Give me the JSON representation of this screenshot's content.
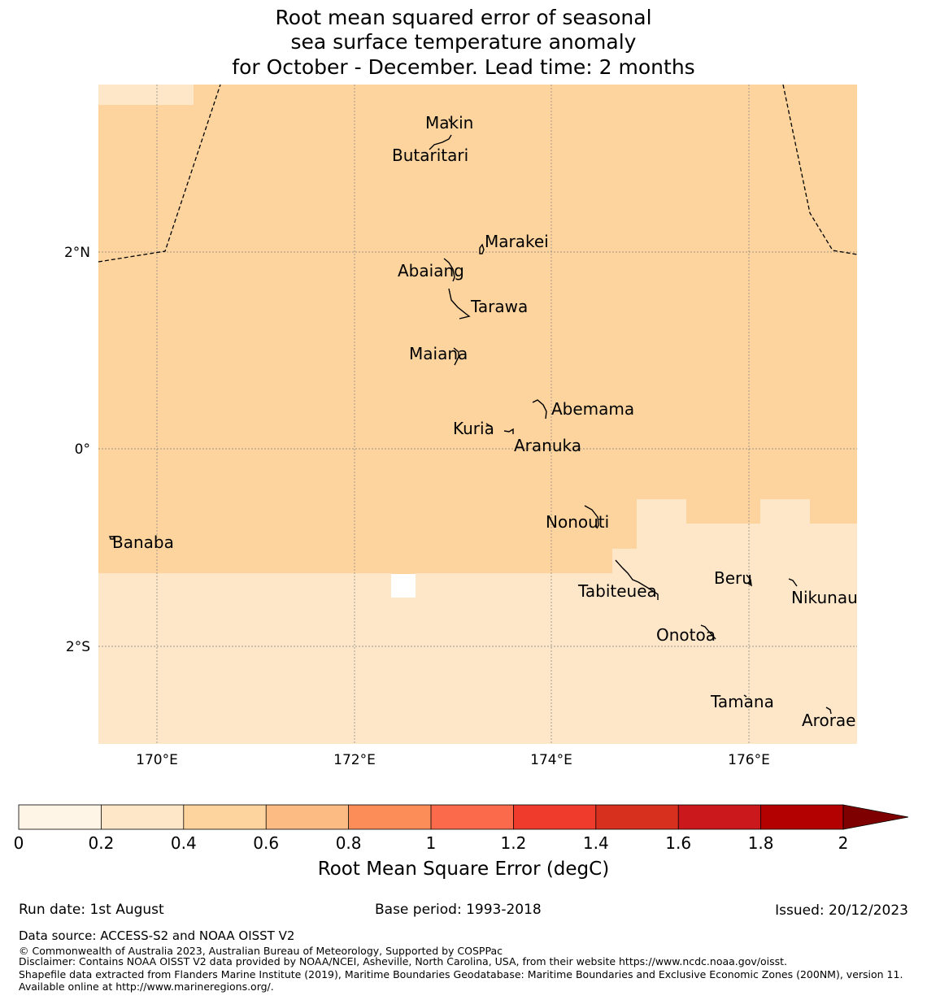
{
  "title": {
    "line1": "Root mean squared error of seasonal",
    "line2": "sea surface temperature anomaly",
    "line3": "for October - December. Lead time: 2 months"
  },
  "colors": {
    "rmse_0_0_2": "#fff5e6",
    "rmse_0_2_0_4": "#fee6c8",
    "rmse_0_4_0_6": "#fdd49e",
    "boundary": "#000000",
    "grid": "#7f7f7f"
  },
  "map": {
    "lon_range": [
      169.4,
      177.1
    ],
    "lat_range": [
      -2.9,
      3.6
    ],
    "lon_ticks": [
      {
        "value": 170,
        "label": "170°E"
      },
      {
        "value": 172,
        "label": "172°E"
      },
      {
        "value": 174,
        "label": "174°E"
      },
      {
        "value": 176,
        "label": "176°E"
      }
    ],
    "lat_ticks": [
      {
        "value": 2,
        "label": "2°N"
      },
      {
        "value": 0,
        "label": "0°"
      },
      {
        "value": -2,
        "label": "2°S"
      }
    ],
    "islands": [
      {
        "name": "Makin",
        "lon": 173.0,
        "lat": 3.25
      },
      {
        "name": "Butaritari",
        "lon": 172.8,
        "lat": 3.1
      },
      {
        "name": "Marakei",
        "lon": 173.3,
        "lat": 2.0
      },
      {
        "name": "Abaiang",
        "lon": 173.0,
        "lat": 1.85
      },
      {
        "name": "Tarawa",
        "lon": 173.0,
        "lat": 1.45
      },
      {
        "name": "Maiana",
        "lon": 173.0,
        "lat": 0.95
      },
      {
        "name": "Abemama",
        "lon": 173.85,
        "lat": 0.4
      },
      {
        "name": "Kuria",
        "lon": 173.4,
        "lat": 0.22
      },
      {
        "name": "Aranuka",
        "lon": 173.6,
        "lat": 0.18
      },
      {
        "name": "Banaba",
        "lon": 169.55,
        "lat": -0.87
      },
      {
        "name": "Nonouti",
        "lon": 174.4,
        "lat": -0.67
      },
      {
        "name": "Beru",
        "lon": 176.0,
        "lat": -1.33
      },
      {
        "name": "Tabiteuea",
        "lon": 174.9,
        "lat": -1.35
      },
      {
        "name": "Nikunau",
        "lon": 176.45,
        "lat": -1.37
      },
      {
        "name": "Onotoa",
        "lon": 175.55,
        "lat": -1.8
      },
      {
        "name": "Tamana",
        "lon": 175.98,
        "lat": -2.5
      },
      {
        "name": "Arorae",
        "lon": 176.82,
        "lat": -2.65
      }
    ]
  },
  "colorbar": {
    "title": "Root Mean Square Error (degC)",
    "levels": [
      "0",
      "0.2",
      "0.4",
      "0.6",
      "0.8",
      "1",
      "1.2",
      "1.4",
      "1.6",
      "1.8",
      "2"
    ],
    "colors": [
      "#fff5e6",
      "#fee6c8",
      "#fdd49e",
      "#fdbb84",
      "#fc8d59",
      "#fb6a4a",
      "#ef3b2c",
      "#d7301f",
      "#cb181d",
      "#b30000",
      "#7f0000"
    ],
    "extend": "max"
  },
  "footer": {
    "run_date": "Run date: 1st August",
    "base_period": "Base period: 1993-2018",
    "issued": "Issued: 20/12/2023",
    "data_source": "Data source: ACCESS-S2 and NOAA OISST V2",
    "copyright": "© Commonwealth of Australia 2023, Australian Bureau of Meteorology, Supported by COSPPac",
    "disclaimer": "Disclaimer: Contains NOAA OISST V2 data provided by NOAA/NCEI, Asheville, North Carolina, USA, from their website https://www.ncdc.noaa.gov/oisst.",
    "shapefile": "Shapefile data extracted from Flanders Marine Institute (2019), Maritime Boundaries Geodatabase: Maritime Boundaries and Exclusive Economic Zones (200NM), version 11. Available online at http://www.marineregions.org/."
  }
}
